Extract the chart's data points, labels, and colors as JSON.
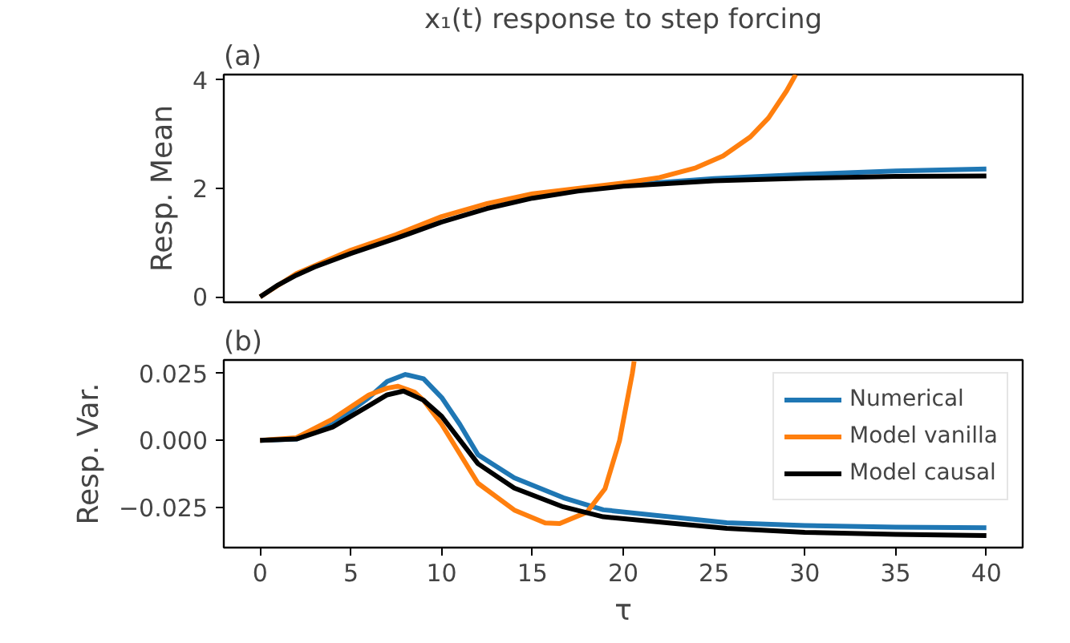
{
  "chart_data": [
    {
      "type": "line",
      "title": "x₁(t) response to step forcing",
      "annotations": [
        "(a)"
      ],
      "ylabel": "Resp. Mean",
      "xlim": [
        -2,
        42
      ],
      "ylim": [
        -0.1,
        4.1
      ],
      "yticks": [
        0,
        2,
        4
      ],
      "tick_labels": "y",
      "grid": false,
      "legend": false,
      "series": [
        {
          "color": "#1f77b4",
          "x": [
            20,
            25,
            30,
            35,
            40
          ],
          "values": [
            2.06,
            2.18,
            2.26,
            2.32,
            2.36
          ]
        },
        {
          "color": "#ff7f0e",
          "x": [
            0,
            2,
            5,
            7.5,
            10,
            12.5,
            15,
            17.5,
            20,
            22,
            24,
            25.5,
            27,
            28,
            29,
            29.5
          ],
          "values": [
            0,
            0.43,
            0.86,
            1.15,
            1.48,
            1.72,
            1.9,
            2.0,
            2.1,
            2.2,
            2.38,
            2.6,
            2.95,
            3.3,
            3.8,
            4.1
          ]
        },
        {
          "color": "#000000",
          "x": [
            0,
            1,
            2,
            3,
            5,
            7.5,
            10,
            12.5,
            15,
            17.5,
            20,
            25,
            30,
            35,
            40
          ],
          "values": [
            0,
            0.22,
            0.4,
            0.55,
            0.8,
            1.08,
            1.38,
            1.63,
            1.82,
            1.95,
            2.04,
            2.14,
            2.19,
            2.22,
            2.23
          ]
        }
      ]
    },
    {
      "type": "line",
      "annotations": [
        "(b)"
      ],
      "xlabel": "τ",
      "ylabel": "Resp. Var.",
      "xlim": [
        -2,
        42
      ],
      "ylim": [
        -0.04,
        0.03
      ],
      "xticks": [
        0,
        5,
        10,
        15,
        20,
        25,
        30,
        35,
        40
      ],
      "yticks": [
        {
          "value": -0.025,
          "label": "−0.025"
        },
        {
          "value": 0,
          "label": "0.000"
        },
        {
          "value": 0.025,
          "label": "0.025"
        }
      ],
      "grid": false,
      "legend": "top right",
      "series": [
        {
          "name": "Numerical",
          "color": "#1f77b4",
          "x": [
            0,
            2,
            4,
            6,
            7,
            8,
            9,
            10,
            11,
            12,
            14,
            16.7,
            18.9,
            25.7,
            30,
            35,
            40
          ],
          "values": [
            0,
            0.0005,
            0.006,
            0.016,
            0.022,
            0.0246,
            0.023,
            0.016,
            0.006,
            -0.0054,
            -0.014,
            -0.0214,
            -0.0259,
            -0.0307,
            -0.0318,
            -0.0324,
            -0.0326
          ]
        },
        {
          "name": "Model vanilla",
          "color": "#ff7f0e",
          "x": [
            0,
            2,
            4,
            6,
            7,
            7.6,
            8.5,
            9,
            10,
            12,
            14,
            15.7,
            16.5,
            18,
            19,
            19.8,
            20.5,
            20.6
          ],
          "values": [
            0,
            0.001,
            0.008,
            0.017,
            0.0195,
            0.0202,
            0.018,
            0.015,
            0.006,
            -0.016,
            -0.026,
            -0.0308,
            -0.031,
            -0.0268,
            -0.018,
            0,
            0.025,
            0.0295
          ]
        },
        {
          "name": "Model causal",
          "color": "#000000",
          "x": [
            0,
            2,
            4,
            6,
            7,
            7.9,
            9,
            10,
            12,
            14,
            16.7,
            18.9,
            25.7,
            30,
            35,
            40
          ],
          "values": [
            0,
            0.0005,
            0.005,
            0.013,
            0.017,
            0.0184,
            0.015,
            0.009,
            -0.0087,
            -0.0178,
            -0.0248,
            -0.0285,
            -0.0328,
            -0.0343,
            -0.0351,
            -0.0355
          ]
        }
      ]
    }
  ]
}
